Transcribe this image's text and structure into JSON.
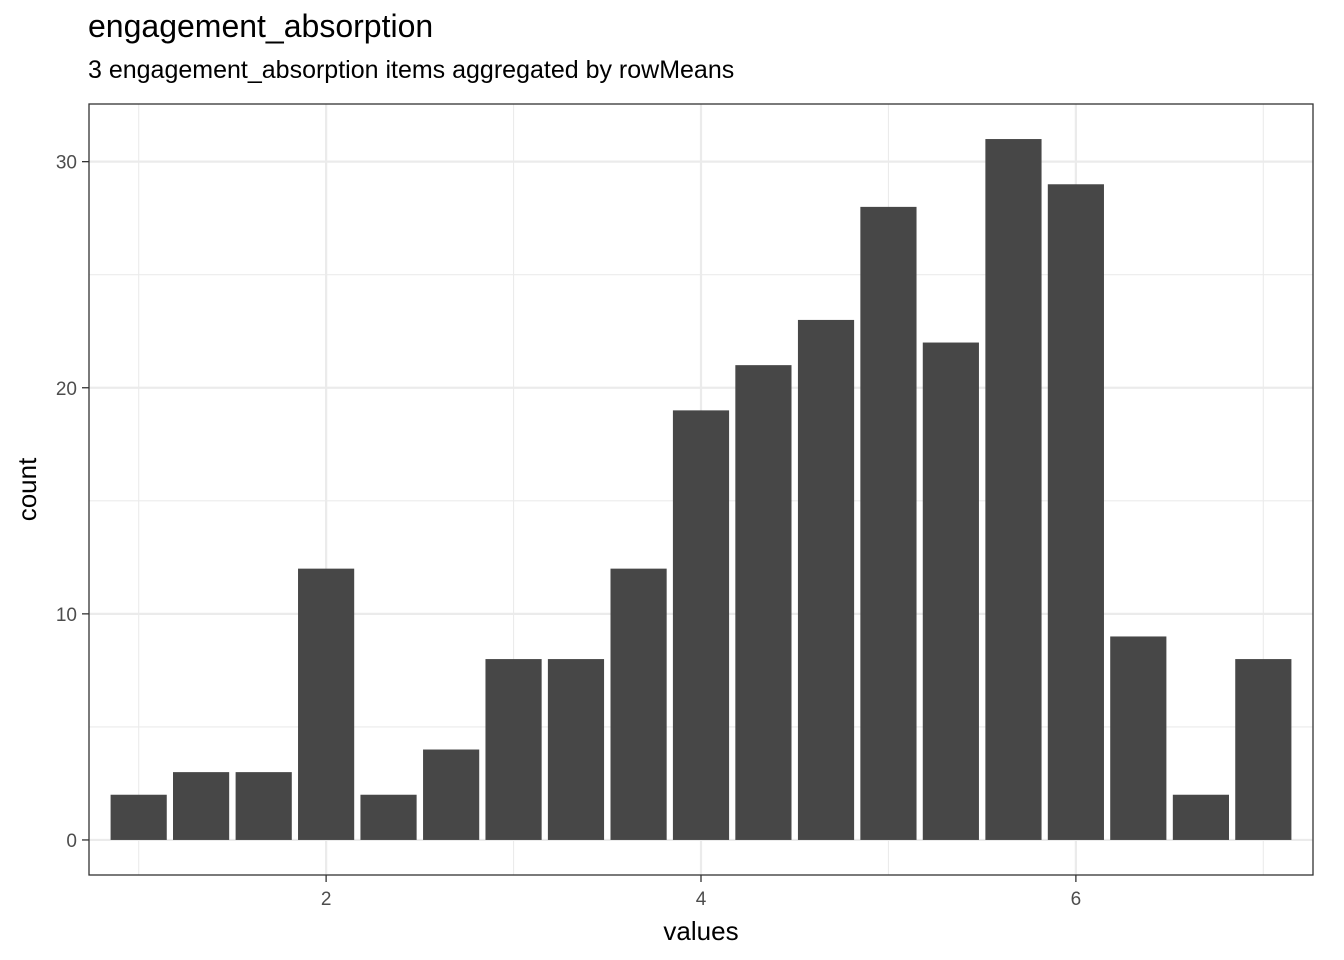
{
  "chart_data": {
    "type": "bar",
    "title": "engagement_absorption",
    "subtitle": "3 engagement_absorption items aggregated by rowMeans",
    "xlabel": "values",
    "ylabel": "count",
    "x": [
      1.0,
      1.333,
      1.667,
      2.0,
      2.333,
      2.667,
      3.0,
      3.333,
      3.667,
      4.0,
      4.333,
      4.667,
      5.0,
      5.333,
      5.667,
      6.0,
      6.333,
      6.667,
      7.0
    ],
    "values": [
      2,
      3,
      3,
      12,
      2,
      4,
      8,
      8,
      12,
      19,
      21,
      23,
      28,
      22,
      31,
      29,
      9,
      2,
      8
    ],
    "xlim": [
      0.735,
      7.265
    ],
    "ylim": [
      -1.55,
      32.55
    ],
    "x_ticks": [
      2,
      4,
      6
    ],
    "y_ticks": [
      0,
      10,
      20,
      30
    ],
    "grid": true,
    "bar_color": "#474747",
    "grid_color": "#ebebeb",
    "panel_border_color": "#333333"
  }
}
